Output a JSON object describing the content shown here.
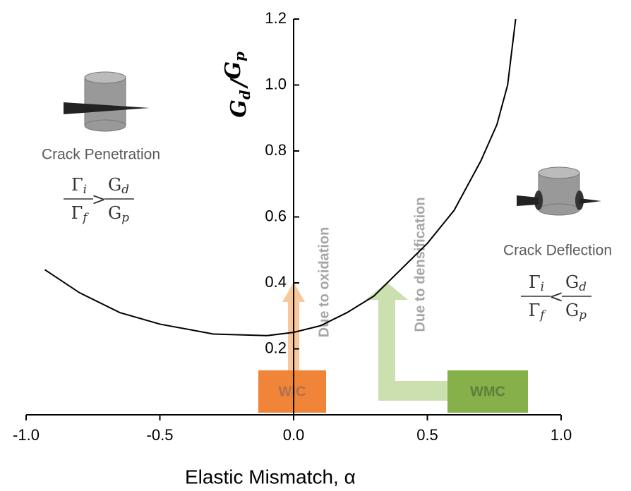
{
  "chart_data": {
    "type": "line",
    "xlabel": "Elastic Mismatch, α",
    "ylabel": [
      {
        "base": "G",
        "sub": "d"
      },
      "/",
      {
        "base": "G",
        "sub": "p"
      }
    ],
    "xlim": [
      -1.0,
      1.0
    ],
    "ylim": [
      0,
      1.2
    ],
    "xticks": [
      {
        "value": -1.0,
        "label": "-1.0"
      },
      {
        "value": -0.5,
        "label": "-0.5"
      },
      {
        "value": 0.0,
        "label": "0.0"
      },
      {
        "value": 0.5,
        "label": "0.5"
      },
      {
        "value": 1.0,
        "label": "1.0"
      }
    ],
    "yticks": [
      0.2,
      0.4,
      0.6,
      0.8,
      {
        "value": 1.0,
        "label": "1.0"
      },
      1.2
    ],
    "x": [
      -0.93,
      -0.8,
      -0.65,
      -0.5,
      -0.3,
      -0.1,
      0.0,
      0.1,
      0.2,
      0.3,
      0.4,
      0.5,
      0.6,
      0.7,
      0.76,
      0.8,
      0.83
    ],
    "series": [
      {
        "color": "#000000",
        "values": [
          0.44,
          0.37,
          0.31,
          0.275,
          0.245,
          0.24,
          0.25,
          0.27,
          0.31,
          0.36,
          0.44,
          0.52,
          0.62,
          0.77,
          0.88,
          1.0,
          1.2
        ]
      }
    ],
    "annotations": {
      "penetration": "Crack Penetration",
      "penetration_condition": {
        "num1": {
          "base": "Γ",
          "sub": "i"
        },
        "den1": {
          "base": "Γ",
          "sub": "f"
        },
        "op": ">",
        "num2": {
          "base": "G",
          "sub": "d"
        },
        "den2": {
          "base": "G",
          "sub": "p"
        }
      },
      "deflection": "Crack Deflection",
      "deflection_condition": {
        "num1": {
          "base": "Γ",
          "sub": "i"
        },
        "den1": {
          "base": "Γ",
          "sub": "f"
        },
        "op": "<",
        "num2": {
          "base": "G",
          "sub": "d"
        },
        "den2": {
          "base": "G",
          "sub": "p"
        }
      },
      "wic": "WIC",
      "wmc": "WMC",
      "oxidation": "Due to oxidation",
      "densification": "Due to densification"
    }
  }
}
